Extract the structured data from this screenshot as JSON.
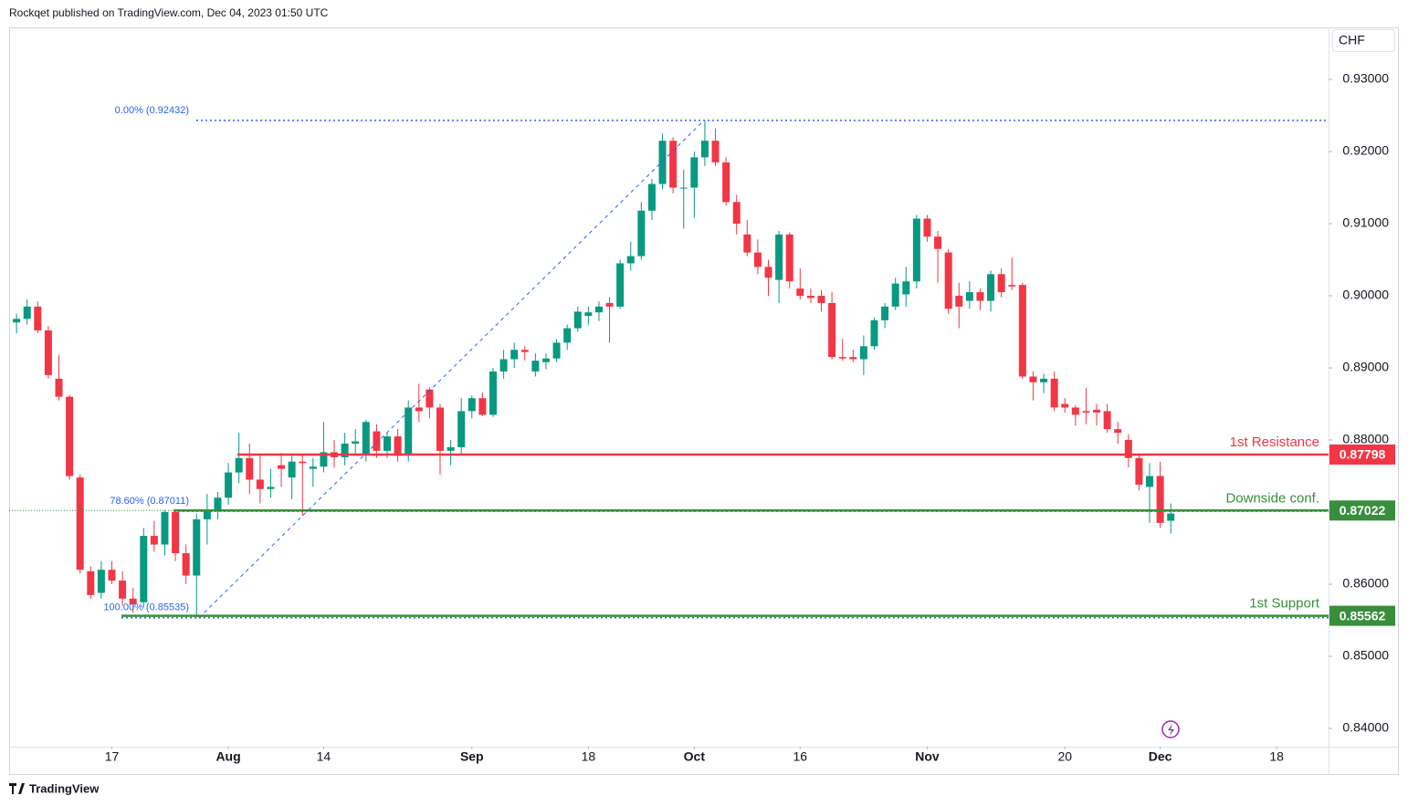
{
  "header": {
    "publisher": "Rockqet published on TradingView.com, Dec 04, 2023 01:50 UTC"
  },
  "footer": {
    "brand": "TradingView"
  },
  "chart_data": {
    "type": "candlestick",
    "currency": "CHF",
    "up_color": "#089981",
    "down_color": "#f23645",
    "xlim": [
      -0.7,
      123.9
    ],
    "xticks": [
      {
        "value": 9,
        "label": "17"
      },
      {
        "value": 20,
        "label": "Aug"
      },
      {
        "value": 29,
        "label": "14"
      },
      {
        "value": 43,
        "label": "Sep"
      },
      {
        "value": 54,
        "label": "18"
      },
      {
        "value": 64,
        "label": "Oct"
      },
      {
        "value": 74,
        "label": "16"
      },
      {
        "value": 86,
        "label": "Nov"
      },
      {
        "value": 99,
        "label": "20"
      },
      {
        "value": 108,
        "label": "Dec"
      },
      {
        "value": 119,
        "label": "18"
      }
    ],
    "ylim": [
      0.83747,
      0.93722
    ],
    "yticks": [
      {
        "value": 0.84,
        "label": "0.84000"
      },
      {
        "value": 0.85,
        "label": "0.85000"
      },
      {
        "value": 0.86,
        "label": "0.86000"
      },
      {
        "value": 0.87,
        "label": "0.87000"
      },
      {
        "value": 0.88,
        "label": "0.88000"
      },
      {
        "value": 0.89,
        "label": "0.89000"
      },
      {
        "value": 0.9,
        "label": "0.90000"
      },
      {
        "value": 0.91,
        "label": "0.91000"
      },
      {
        "value": 0.92,
        "label": "0.92000"
      },
      {
        "value": 0.93,
        "label": "0.93000"
      }
    ],
    "open": [
      0.8963,
      0.8968,
      0.8985,
      0.8952,
      0.8885,
      0.886,
      0.8748,
      0.8618,
      0.8588,
      0.862,
      0.8605,
      0.858,
      0.8575,
      0.8667,
      0.8655,
      0.87,
      0.8643,
      0.8612,
      0.869,
      0.8703,
      0.872,
      0.8755,
      0.8775,
      0.8745,
      0.8732,
      0.8765,
      0.8748,
      0.877,
      0.876,
      0.8763,
      0.8783,
      0.8776,
      0.8795,
      0.878,
      0.8812,
      0.8785,
      0.8805,
      0.878,
      0.8845,
      0.887,
      0.8845,
      0.8785,
      0.879,
      0.884,
      0.8858,
      0.8835,
      0.8895,
      0.8912,
      0.8925,
      0.8895,
      0.8908,
      0.8913,
      0.8935,
      0.8955,
      0.8972,
      0.8977,
      0.899,
      0.8985,
      0.9045,
      0.9055,
      0.9118,
      0.9155,
      0.9215,
      0.915,
      0.915,
      0.9192,
      0.9215,
      0.9185,
      0.913,
      0.9085,
      0.906,
      0.904,
      0.9022,
      0.9085,
      0.901,
      0.9,
      0.9,
      0.899,
      0.8915,
      0.8915,
      0.8912,
      0.893,
      0.8966,
      0.8985,
      0.9002,
      0.902,
      0.9107,
      0.9082,
      0.906,
      0.9,
      0.8993,
      0.9005,
      0.8993,
      0.903,
      0.9015,
      0.9015,
      0.8888,
      0.888,
      0.8885,
      0.885,
      0.8845,
      0.884,
      0.8842,
      0.884,
      0.8815,
      0.88,
      0.8775,
      0.8735,
      0.875,
      0.8688
    ],
    "high": [
      0.8975,
      0.8995,
      0.8992,
      0.8958,
      0.8918,
      0.8862,
      0.8752,
      0.8625,
      0.8632,
      0.8632,
      0.8618,
      0.8595,
      0.8678,
      0.8688,
      0.8703,
      0.8703,
      0.8655,
      0.8698,
      0.8725,
      0.8728,
      0.8768,
      0.881,
      0.8795,
      0.8778,
      0.876,
      0.8782,
      0.8778,
      0.878,
      0.8775,
      0.8825,
      0.88,
      0.881,
      0.8815,
      0.8828,
      0.8822,
      0.881,
      0.8815,
      0.8855,
      0.8878,
      0.8873,
      0.885,
      0.88,
      0.8858,
      0.8862,
      0.8866,
      0.89,
      0.8925,
      0.8935,
      0.893,
      0.892,
      0.892,
      0.894,
      0.896,
      0.8985,
      0.8985,
      0.8992,
      0.8998,
      0.905,
      0.9075,
      0.913,
      0.9162,
      0.9225,
      0.922,
      0.9175,
      0.92,
      0.9243,
      0.9232,
      0.9192,
      0.914,
      0.9105,
      0.9078,
      0.905,
      0.909,
      0.9088,
      0.9038,
      0.901,
      0.9008,
      0.9005,
      0.894,
      0.8925,
      0.8945,
      0.897,
      0.899,
      0.9025,
      0.904,
      0.9112,
      0.9112,
      0.909,
      0.9065,
      0.9018,
      0.902,
      0.901,
      0.9035,
      0.9038,
      0.9053,
      0.9018,
      0.8895,
      0.8892,
      0.8895,
      0.8858,
      0.8848,
      0.8872,
      0.885,
      0.885,
      0.8825,
      0.8808,
      0.878,
      0.8768,
      0.877,
      0.8712
    ],
    "low": [
      0.8948,
      0.896,
      0.8948,
      0.8885,
      0.8855,
      0.8745,
      0.8615,
      0.858,
      0.858,
      0.86,
      0.857,
      0.856,
      0.8568,
      0.8645,
      0.864,
      0.8632,
      0.86,
      0.8555,
      0.8655,
      0.869,
      0.871,
      0.874,
      0.8725,
      0.8712,
      0.872,
      0.8735,
      0.8718,
      0.8695,
      0.8735,
      0.8755,
      0.8762,
      0.8765,
      0.878,
      0.877,
      0.8775,
      0.8775,
      0.877,
      0.877,
      0.8825,
      0.883,
      0.8752,
      0.8765,
      0.878,
      0.883,
      0.8833,
      0.8832,
      0.8885,
      0.89,
      0.891,
      0.8888,
      0.8898,
      0.8908,
      0.8925,
      0.895,
      0.896,
      0.8965,
      0.8935,
      0.8982,
      0.9035,
      0.905,
      0.9105,
      0.9148,
      0.9142,
      0.9093,
      0.9108,
      0.918,
      0.918,
      0.9125,
      0.9085,
      0.9055,
      0.903,
      0.9,
      0.899,
      0.901,
      0.8995,
      0.899,
      0.8978,
      0.8912,
      0.891,
      0.8908,
      0.889,
      0.8925,
      0.8955,
      0.898,
      0.8985,
      0.901,
      0.9075,
      0.9018,
      0.8975,
      0.8955,
      0.8982,
      0.898,
      0.8978,
      0.8998,
      0.9008,
      0.8885,
      0.8855,
      0.8865,
      0.884,
      0.8838,
      0.882,
      0.8822,
      0.882,
      0.881,
      0.8795,
      0.8762,
      0.873,
      0.8685,
      0.8678,
      0.867
    ],
    "close": [
      0.8968,
      0.8985,
      0.8952,
      0.889,
      0.886,
      0.875,
      0.862,
      0.8585,
      0.862,
      0.8605,
      0.858,
      0.8572,
      0.8667,
      0.8655,
      0.87,
      0.8643,
      0.8612,
      0.869,
      0.8703,
      0.872,
      0.8755,
      0.8775,
      0.8745,
      0.8732,
      0.8735,
      0.876,
      0.877,
      0.8768,
      0.8763,
      0.8783,
      0.8776,
      0.8795,
      0.8798,
      0.8825,
      0.8785,
      0.8805,
      0.878,
      0.8845,
      0.884,
      0.8845,
      0.8785,
      0.879,
      0.884,
      0.8858,
      0.8835,
      0.8895,
      0.8912,
      0.8925,
      0.8922,
      0.891,
      0.8913,
      0.8935,
      0.8955,
      0.8978,
      0.8977,
      0.8985,
      0.8985,
      0.9045,
      0.9055,
      0.9118,
      0.9155,
      0.9215,
      0.915,
      0.915,
      0.9192,
      0.9215,
      0.9185,
      0.913,
      0.91,
      0.906,
      0.904,
      0.9025,
      0.9085,
      0.902,
      0.9,
      0.8997,
      0.899,
      0.8915,
      0.8913,
      0.8912,
      0.893,
      0.8966,
      0.8985,
      0.9017,
      0.902,
      0.9107,
      0.9082,
      0.9065,
      0.8982,
      0.8985,
      0.9005,
      0.8993,
      0.903,
      0.9005,
      0.9013,
      0.8888,
      0.888,
      0.8885,
      0.8845,
      0.8845,
      0.8835,
      0.8838,
      0.8838,
      0.8815,
      0.881,
      0.8775,
      0.8738,
      0.875,
      0.8685,
      0.8698
    ],
    "fibonacci": [
      {
        "label": "0.00% (0.92432)",
        "value": 0.92432
      },
      {
        "label": "78.60% (0.87011)",
        "value": 0.87011
      },
      {
        "label": "100.00% (0.85535)",
        "value": 0.85535
      }
    ],
    "fib_color": "#2962ff",
    "levels": [
      {
        "name": "1st Resistance",
        "value": 0.87798,
        "color": "#f23645"
      },
      {
        "name": "Downside conf.",
        "value": 0.87022,
        "color": "#388e3c"
      },
      {
        "name": "1st Support",
        "value": 0.85562,
        "color": "#388e3c"
      }
    ]
  }
}
